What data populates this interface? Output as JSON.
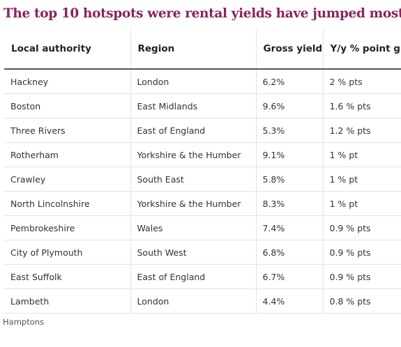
{
  "title": "The top 10 hotspots were rental yields have jumped most",
  "columns": [
    "Local authority",
    "Region",
    "Gross yield",
    "Y/y % point growth"
  ],
  "rows": [
    [
      "Hackney",
      "London",
      "6.2%",
      "2 % pts"
    ],
    [
      "Boston",
      "East Midlands",
      "9.6%",
      "1.6 % pts"
    ],
    [
      "Three Rivers",
      "East of England",
      "5.3%",
      "1.2 % pts"
    ],
    [
      "Rotherham",
      "Yorkshire & the Humber",
      "9.1%",
      "1 % pt"
    ],
    [
      "Crawley",
      "South East",
      "5.8%",
      "1 % pt"
    ],
    [
      "North Lincolnshire",
      "Yorkshire & the Humber",
      "8.3%",
      "1 % pt"
    ],
    [
      "Pembrokeshire",
      "Wales",
      "7.4%",
      "0.9 % pts"
    ],
    [
      "City of Plymouth",
      "South West",
      "6.8%",
      "0.9 % pts"
    ],
    [
      "East Suffolk",
      "East of England",
      "6.7%",
      "0.9 % pts"
    ],
    [
      "Lambeth",
      "London",
      "4.4%",
      "0.8 % pts"
    ]
  ],
  "source": "Hamptons",
  "colors": {
    "title": "#8a2363",
    "header_rule": "#555555",
    "row_rule": "#e3e3e3"
  }
}
